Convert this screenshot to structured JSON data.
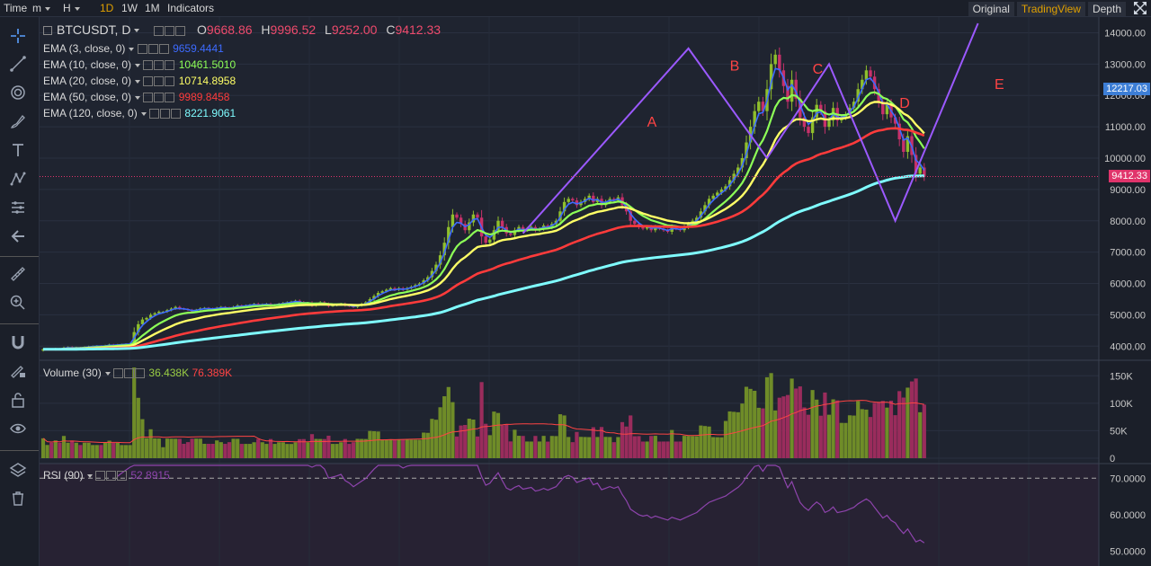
{
  "toolbar": {
    "time_label": "Time",
    "minute_label": "m",
    "hour_label": "H",
    "intervals": [
      "1D",
      "1W",
      "1M"
    ],
    "selected_interval": "1D",
    "indicators_label": "Indicators",
    "view_options": [
      "Original",
      "TradingView",
      "Depth"
    ],
    "selected_view": "TradingView"
  },
  "tools": [
    "crosshair-icon",
    "trend-line-icon",
    "fib-icon",
    "brush-icon",
    "text-icon",
    "pattern-icon",
    "measure-icon",
    "arrow-left-icon",
    "ruler-icon",
    "zoom-in-icon",
    "magnet-icon",
    "lock-draw-icon",
    "unlock-icon",
    "eye-icon",
    "layers-icon",
    "trash-icon"
  ],
  "symbol": "BTCUSDT, D",
  "ohlc": [
    {
      "label": "O",
      "value": "9668.86"
    },
    {
      "label": "H",
      "value": "9996.52"
    },
    {
      "label": "L",
      "value": "9252.00"
    },
    {
      "label": "C",
      "value": "9412.33"
    }
  ],
  "ema_legends": [
    {
      "label": "EMA (3, close, 0)",
      "value": "9659.4441",
      "color": "#3d6bff"
    },
    {
      "label": "EMA (10, close, 0)",
      "value": "10461.5010",
      "color": "#8dff57"
    },
    {
      "label": "EMA (20, close, 0)",
      "value": "10714.8958",
      "color": "#ffff66"
    },
    {
      "label": "EMA (50, close, 0)",
      "value": "9989.8458",
      "color": "#ff3b3b"
    },
    {
      "label": "EMA (120, close, 0)",
      "value": "8221.9061",
      "color": "#7ffcff"
    }
  ],
  "volume_legend": {
    "label": "Volume (30)",
    "values": [
      "36.438K",
      "76.389K"
    ],
    "colors": [
      "#99cc44",
      "#ff4444"
    ]
  },
  "rsi_legend": {
    "label": "RSI (90)",
    "value": "52.8915",
    "color": "#8e44ad"
  },
  "price_tags": [
    {
      "value": "12217.03",
      "bg": "#3d7ed6",
      "price": 12217
    },
    {
      "value": "9412.33",
      "bg": "#e0346b",
      "price": 9412
    }
  ],
  "chart_data": {
    "type": "candlestick",
    "symbol": "BTCUSDT",
    "interval": "D",
    "price_axis": {
      "ticks": [
        "4000.00",
        "5000.00",
        "6000.00",
        "7000.00",
        "8000.00",
        "9000.00",
        "10000.00",
        "11000.00",
        "12000.00",
        "13000.00",
        "14000.00"
      ],
      "ylim": [
        3550,
        14500
      ]
    },
    "volume_axis": {
      "ticks": [
        "0",
        "50K",
        "100K",
        "150K"
      ],
      "ylim": [
        0,
        175000
      ]
    },
    "rsi_axis": {
      "ticks": [
        "50.0000",
        "60.0000",
        "70.0000"
      ],
      "ylim": [
        46,
        74
      ],
      "reference_line": 70
    },
    "close_series": [
      3900,
      3910,
      3890,
      3920,
      3900,
      3950,
      3970,
      3940,
      3960,
      3950,
      3970,
      3990,
      4000,
      4010,
      4000,
      4020,
      4050,
      4030,
      4050,
      4060,
      4070,
      4080,
      4450,
      4700,
      4850,
      4900,
      5000,
      5050,
      5100,
      5100,
      5150,
      5200,
      5250,
      5200,
      5180,
      5150,
      5100,
      5150,
      5200,
      5220,
      5200,
      5180,
      5220,
      5250,
      5230,
      5200,
      5250,
      5300,
      5280,
      5300,
      5320,
      5350,
      5300,
      5330,
      5350,
      5300,
      5320,
      5350,
      5380,
      5400,
      5420,
      5450,
      5400,
      5350,
      5380,
      5300,
      5350,
      5400,
      5350,
      5280,
      5300,
      5320,
      5350,
      5300,
      5280,
      5250,
      5300,
      5350,
      5400,
      5500,
      5600,
      5700,
      5750,
      5800,
      5850,
      5800,
      5850,
      5800,
      5850,
      5900,
      5950,
      6000,
      6100,
      6200,
      6400,
      6600,
      6900,
      7300,
      7800,
      8200,
      8100,
      7900,
      7700,
      7950,
      8200,
      8100,
      7500,
      7300,
      7400,
      7700,
      8000,
      7800,
      7600,
      7550,
      7700,
      7800,
      7700,
      7750,
      7800,
      7700,
      7750,
      7850,
      7800,
      7900,
      8000,
      8300,
      8600,
      8700,
      8650,
      8500,
      8600,
      8700,
      8800,
      8600,
      8700,
      8500,
      8600,
      8700,
      8650,
      8750,
      8500,
      8300,
      8000,
      7900,
      7800,
      7750,
      7800,
      7700,
      7800,
      7750,
      7700,
      7650,
      7800,
      7750,
      7700,
      7800,
      7900,
      8000,
      8100,
      8300,
      8500,
      8700,
      8800,
      8900,
      9000,
      9100,
      9300,
      9500,
      9700,
      10000,
      10500,
      11000,
      11500,
      11800,
      11500,
      12200,
      13000,
      13300,
      12800,
      12300,
      11800,
      12500,
      11900,
      11300,
      11000,
      10800,
      11300,
      11700,
      11500,
      11000,
      11200,
      11600,
      11200,
      11300,
      11400,
      11600,
      11800,
      12200,
      12500,
      12800,
      12600,
      12200,
      11800,
      11400,
      11700,
      11300,
      11100,
      10600,
      10200,
      10700,
      10100,
      9500,
      9700,
      9412
    ],
    "ema": [
      {
        "name": "EMA (3, close, 0)",
        "period": 3,
        "color": "#3d6bff"
      },
      {
        "name": "EMA (10, close, 0)",
        "period": 10,
        "color": "#8dff57"
      },
      {
        "name": "EMA (20, close, 0)",
        "period": 20,
        "color": "#ffff66"
      },
      {
        "name": "EMA (50, close, 0)",
        "period": 50,
        "color": "#ff3b3b"
      },
      {
        "name": "EMA (120, close, 0)",
        "period": 120,
        "color": "#7ffcff"
      }
    ],
    "annotations": [
      {
        "text": "A",
        "color": "#ff4444"
      },
      {
        "text": "B",
        "color": "#ff4444"
      },
      {
        "text": "C",
        "color": "#ff4444"
      },
      {
        "text": "D",
        "color": "#ff4444"
      },
      {
        "text": "E",
        "color": "#ff4444"
      }
    ],
    "abcde_path": {
      "color": "#9b59ff",
      "points": [
        [
          116,
          7600
        ],
        [
          156,
          13500
        ],
        [
          175,
          10000
        ],
        [
          190,
          13000
        ],
        [
          206,
          8000
        ],
        [
          226,
          14300
        ]
      ]
    },
    "current_price_line": 9412
  }
}
